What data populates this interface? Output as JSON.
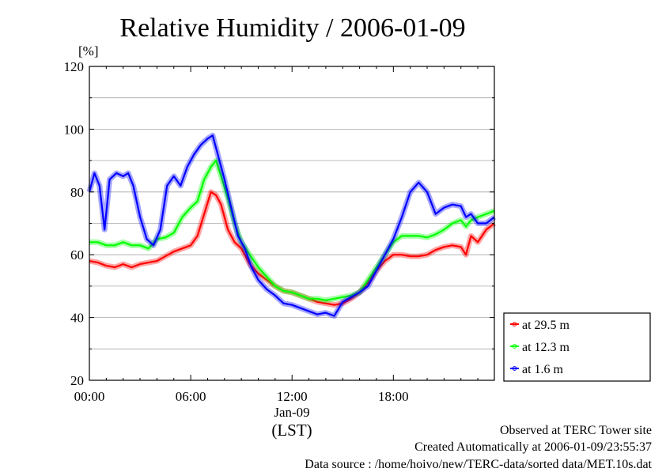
{
  "chart_data": {
    "type": "line",
    "title": "Relative Humidity / 2006-01-09",
    "ylabel": "[%]",
    "ylim": [
      20,
      120
    ],
    "yticks": [
      "20",
      "40",
      "60",
      "80",
      "100",
      "120"
    ],
    "xlim": [
      0,
      23.98
    ],
    "xticks": [
      {
        "x": 0,
        "label": "00:00"
      },
      {
        "x": 6,
        "label": "06:00"
      },
      {
        "x": 12,
        "label": "12:00"
      },
      {
        "x": 18,
        "label": "18:00"
      }
    ],
    "xdate": "Jan-09",
    "xunit": "(LST)",
    "grid": true,
    "legend_position": "right, lower",
    "series": [
      {
        "name": "at 29.5 m",
        "color": "#ff0000",
        "points": [
          [
            0,
            58
          ],
          [
            0.5,
            57.5
          ],
          [
            1,
            56.5
          ],
          [
            1.5,
            56
          ],
          [
            2,
            57
          ],
          [
            2.5,
            56
          ],
          [
            3,
            57
          ],
          [
            3.5,
            57.5
          ],
          [
            4,
            58
          ],
          [
            4.5,
            59.5
          ],
          [
            5,
            61
          ],
          [
            5.5,
            62
          ],
          [
            6,
            63
          ],
          [
            6.4,
            66
          ],
          [
            6.8,
            73
          ],
          [
            7.2,
            80
          ],
          [
            7.5,
            79
          ],
          [
            7.8,
            76
          ],
          [
            8.2,
            68
          ],
          [
            8.6,
            64
          ],
          [
            9,
            62
          ],
          [
            9.5,
            57
          ],
          [
            10,
            54
          ],
          [
            10.5,
            52
          ],
          [
            11,
            50
          ],
          [
            11.5,
            48.5
          ],
          [
            12,
            48
          ],
          [
            12.5,
            47
          ],
          [
            13,
            46
          ],
          [
            13.5,
            45
          ],
          [
            14,
            44.5
          ],
          [
            14.5,
            44
          ],
          [
            15,
            44.5
          ],
          [
            15.5,
            46
          ],
          [
            16,
            48
          ],
          [
            16.5,
            51
          ],
          [
            17,
            55
          ],
          [
            17.5,
            58
          ],
          [
            18,
            60
          ],
          [
            18.5,
            60
          ],
          [
            19,
            59.5
          ],
          [
            19.5,
            59.5
          ],
          [
            20,
            60
          ],
          [
            20.5,
            61.5
          ],
          [
            21,
            62.5
          ],
          [
            21.5,
            63
          ],
          [
            22,
            62.5
          ],
          [
            22.3,
            60
          ],
          [
            22.6,
            66
          ],
          [
            23,
            64
          ],
          [
            23.5,
            68
          ],
          [
            23.98,
            70
          ]
        ]
      },
      {
        "name": "at 12.3 m",
        "color": "#00ff00",
        "points": [
          [
            0,
            64
          ],
          [
            0.5,
            64
          ],
          [
            1,
            63
          ],
          [
            1.5,
            63
          ],
          [
            2,
            64
          ],
          [
            2.5,
            63
          ],
          [
            3,
            63
          ],
          [
            3.5,
            62
          ],
          [
            4,
            65
          ],
          [
            4.5,
            65.5
          ],
          [
            5,
            67
          ],
          [
            5.5,
            72
          ],
          [
            6,
            75
          ],
          [
            6.4,
            77
          ],
          [
            6.8,
            84
          ],
          [
            7.2,
            88
          ],
          [
            7.5,
            90
          ],
          [
            7.8,
            85
          ],
          [
            8.2,
            78
          ],
          [
            8.6,
            70
          ],
          [
            9,
            64
          ],
          [
            9.5,
            60
          ],
          [
            10,
            56
          ],
          [
            10.5,
            53
          ],
          [
            11,
            50
          ],
          [
            11.5,
            48.5
          ],
          [
            12,
            48
          ],
          [
            12.5,
            47
          ],
          [
            13,
            46
          ],
          [
            13.5,
            46
          ],
          [
            14,
            45.5
          ],
          [
            14.5,
            46
          ],
          [
            15,
            46.5
          ],
          [
            15.5,
            47
          ],
          [
            16,
            48
          ],
          [
            16.5,
            52
          ],
          [
            17,
            56
          ],
          [
            17.5,
            60
          ],
          [
            18,
            64
          ],
          [
            18.5,
            66
          ],
          [
            19,
            66
          ],
          [
            19.5,
            66
          ],
          [
            20,
            65.5
          ],
          [
            20.5,
            66.5
          ],
          [
            21,
            68
          ],
          [
            21.5,
            70
          ],
          [
            22,
            71
          ],
          [
            22.3,
            69
          ],
          [
            22.6,
            71
          ],
          [
            23,
            72
          ],
          [
            23.5,
            73
          ],
          [
            23.98,
            74
          ]
        ]
      },
      {
        "name": "at 1.6 m",
        "color": "#0000ff",
        "points": [
          [
            0,
            80
          ],
          [
            0.3,
            86
          ],
          [
            0.6,
            82
          ],
          [
            0.9,
            68
          ],
          [
            1.2,
            84
          ],
          [
            1.6,
            86
          ],
          [
            2,
            85
          ],
          [
            2.3,
            86
          ],
          [
            2.6,
            82
          ],
          [
            3,
            72
          ],
          [
            3.4,
            65
          ],
          [
            3.8,
            63
          ],
          [
            4.2,
            68
          ],
          [
            4.6,
            82
          ],
          [
            5,
            85
          ],
          [
            5.4,
            82
          ],
          [
            5.8,
            88
          ],
          [
            6.2,
            92
          ],
          [
            6.6,
            95
          ],
          [
            7,
            97
          ],
          [
            7.3,
            98
          ],
          [
            7.6,
            92
          ],
          [
            8,
            84
          ],
          [
            8.4,
            75
          ],
          [
            8.8,
            66
          ],
          [
            9.2,
            62
          ],
          [
            9.6,
            56
          ],
          [
            10,
            52
          ],
          [
            10.5,
            49
          ],
          [
            11,
            47
          ],
          [
            11.5,
            44.5
          ],
          [
            12,
            44
          ],
          [
            12.5,
            43
          ],
          [
            13,
            42
          ],
          [
            13.5,
            41
          ],
          [
            14,
            41.5
          ],
          [
            14.5,
            40.5
          ],
          [
            15,
            45
          ],
          [
            15.5,
            46.5
          ],
          [
            16,
            48
          ],
          [
            16.5,
            50
          ],
          [
            17,
            55
          ],
          [
            17.5,
            60
          ],
          [
            18,
            65
          ],
          [
            18.5,
            72
          ],
          [
            19,
            80
          ],
          [
            19.5,
            83
          ],
          [
            20,
            80
          ],
          [
            20.5,
            73
          ],
          [
            21,
            75
          ],
          [
            21.5,
            76
          ],
          [
            22,
            75.5
          ],
          [
            22.3,
            72
          ],
          [
            22.6,
            73
          ],
          [
            23,
            70
          ],
          [
            23.5,
            70
          ],
          [
            23.98,
            72
          ]
        ]
      }
    ]
  },
  "footer": {
    "site": "Observed at TERC Tower site",
    "created": "Created Automatically at 2006-01-09/23:55:37",
    "source": "Data source : /home/hoivo/new/TERC-data/sorted data/MET.10s.dat"
  }
}
